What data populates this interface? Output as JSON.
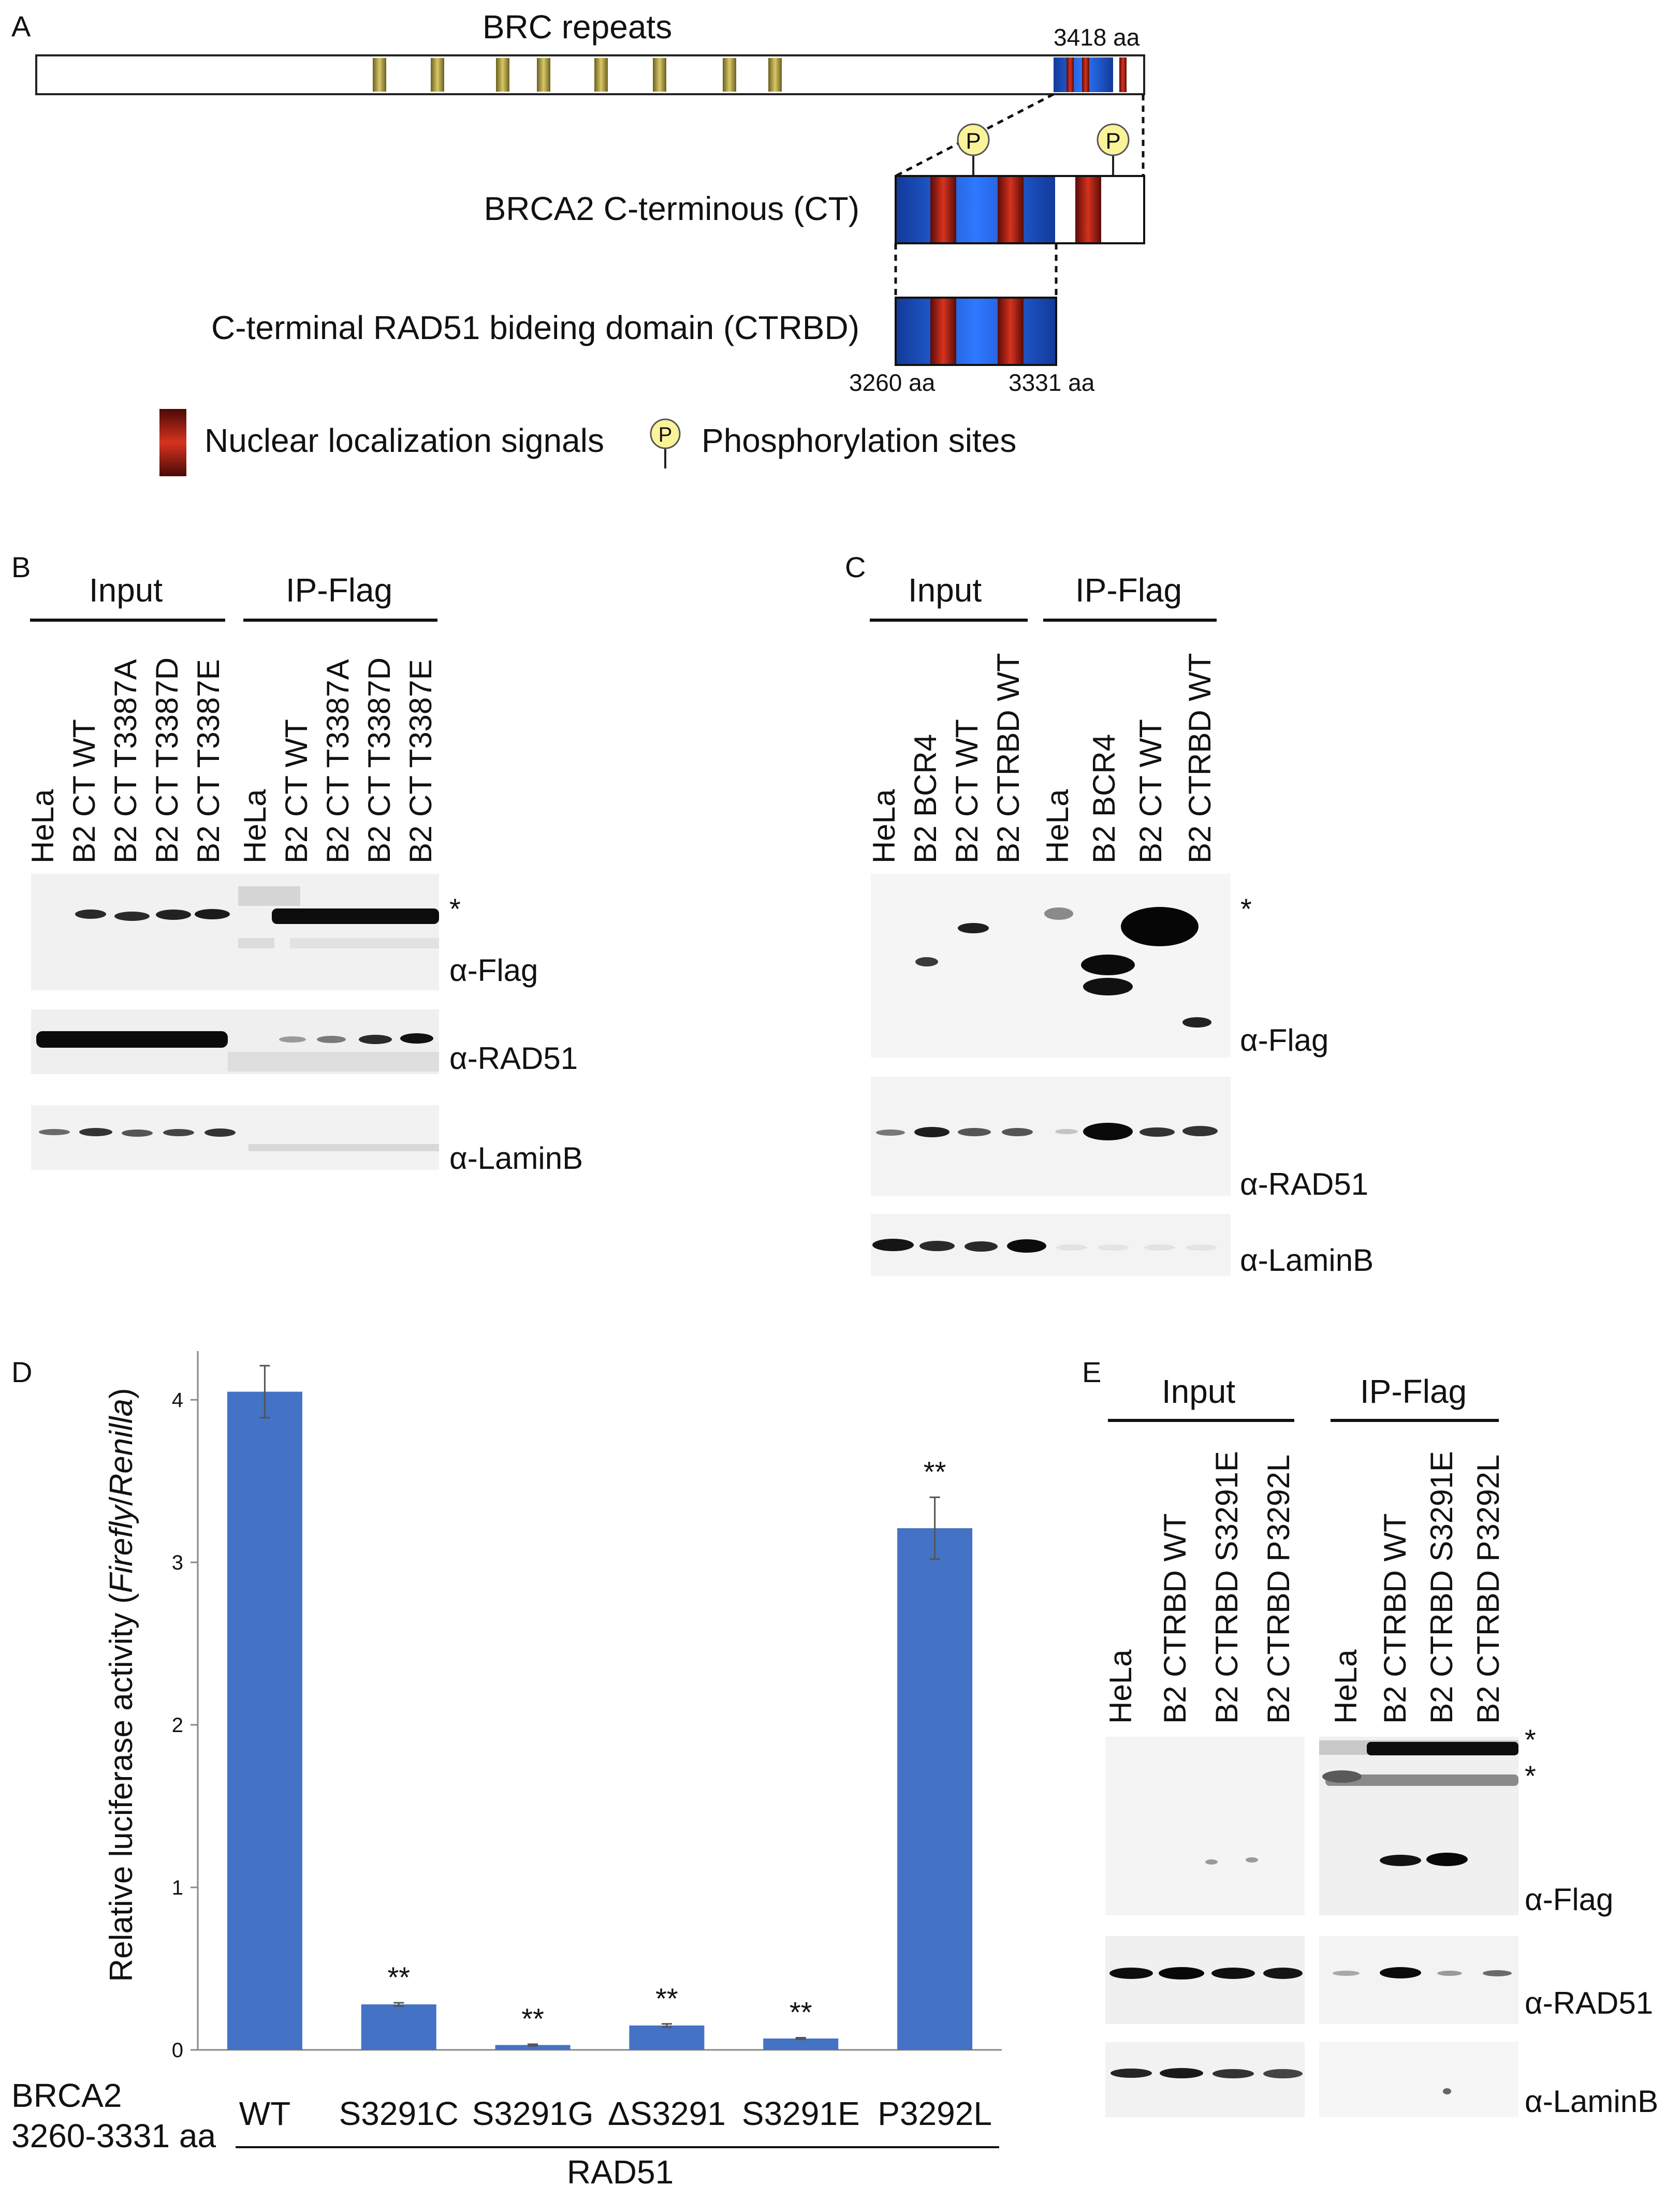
{
  "panel_a": {
    "letter": "A",
    "brc_label": "BRC repeats",
    "len_label": "3418 aa",
    "ct_label": "BRCA2 C-terminous (CT)",
    "ctrbd_label": "C-terminal RAD51 bideing domain (CTRBD)",
    "start_label": "3260 aa",
    "end_label": "3331 aa",
    "phospho_symbol": "P",
    "legend_nls": "Nuclear localization signals",
    "legend_phospho": "Phosphorylation sites",
    "colors": {
      "brc": "#b6a548",
      "nls": "#c62a1e",
      "blue": "#1f5fd6"
    }
  },
  "panel_b": {
    "letter": "B",
    "group_input": "Input",
    "group_ip": "IP-Flag",
    "lanes": [
      "HeLa",
      "B2 CT WT",
      "B2 CT T3387A",
      "B2 CT T3387D",
      "B2 CT T3387E",
      "HeLa",
      "B2 CT WT",
      "B2 CT T3387A",
      "B2 CT T3387D",
      "B2 CT T3387E"
    ],
    "star": "*",
    "antibodies": [
      "α-Flag",
      "α-RAD51",
      "α-LaminB"
    ]
  },
  "panel_c": {
    "letter": "C",
    "group_input": "Input",
    "group_ip": "IP-Flag",
    "lanes": [
      "HeLa",
      "B2 BCR4",
      "B2 CT WT",
      "B2 CTRBD WT",
      "HeLa",
      "B2 BCR4",
      "B2 CT WT",
      "B2 CTRBD WT"
    ],
    "star": "*",
    "antibodies": [
      "α-Flag",
      "α-RAD51",
      "α-LaminB"
    ]
  },
  "panel_d": {
    "letter": "D",
    "row_label_line1": "BRCA2",
    "row_label_line2": "3260-3331 aa",
    "group_label": "RAD51",
    "ylabel_pre": "Relative luciferase activity (",
    "ylabel_italic1": "Firefly",
    "ylabel_sep": "/",
    "ylabel_italic2": "Renilla",
    "ylabel_post": ")",
    "sig_mark": "**"
  },
  "panel_e": {
    "letter": "E",
    "group_input": "Input",
    "group_ip": "IP-Flag",
    "lanes": [
      "HeLa",
      "B2 CTRBD WT",
      "B2 CTRBD S3291E",
      "B2 CTRBD P3292L",
      "HeLa",
      "B2 CTRBD WT",
      "B2 CTRBD S3291E",
      "B2 CTRBD P3292L"
    ],
    "stars": [
      "*",
      "*"
    ],
    "antibodies": [
      "α-Flag",
      "α-RAD51",
      "α-LaminB"
    ]
  },
  "chart_data": {
    "type": "bar",
    "categories": [
      "WT",
      "S3291C",
      "S3291G",
      "ΔS3291",
      "S3291E",
      "P3292L"
    ],
    "values": [
      4.05,
      0.28,
      0.03,
      0.15,
      0.07,
      3.21
    ],
    "errors": [
      0.16,
      0.01,
      0.005,
      0.01,
      0.005,
      0.19
    ],
    "significance": [
      "",
      "**",
      "**",
      "**",
      "**",
      "**"
    ],
    "ylim": [
      0,
      4.3
    ],
    "yticks": [
      0,
      1,
      2,
      3,
      4
    ],
    "bar_color": "#4472c4",
    "grid": false
  }
}
